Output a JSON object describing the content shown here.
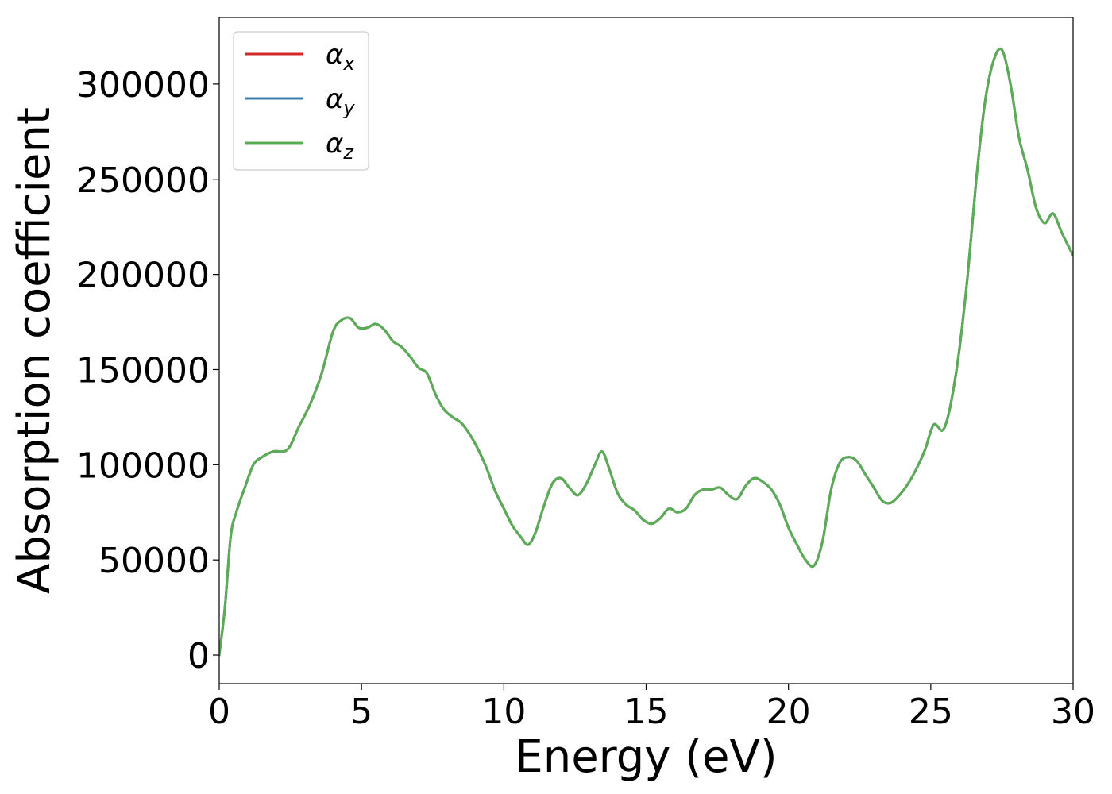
{
  "chart_data": {
    "type": "line",
    "xlabel": "Energy (eV)",
    "ylabel": "Absorption coefficient",
    "xlim": [
      0,
      30
    ],
    "ylim": [
      -15000,
      335000
    ],
    "xticks": [
      0,
      5,
      10,
      15,
      20,
      25,
      30
    ],
    "xtick_labels": [
      "0",
      "5",
      "10",
      "15",
      "20",
      "25",
      "30"
    ],
    "yticks": [
      0,
      50000,
      100000,
      150000,
      200000,
      250000,
      300000
    ],
    "ytick_labels": [
      "0",
      "50000",
      "100000",
      "150000",
      "200000",
      "250000",
      "300000"
    ],
    "grid": false,
    "legend_position": "top-left",
    "x": [
      0,
      0.2,
      0.4,
      0.6,
      0.9,
      1.2,
      1.5,
      1.9,
      2.4,
      2.8,
      3.2,
      3.6,
      4.0,
      4.3,
      4.6,
      4.9,
      5.2,
      5.5,
      5.8,
      6.1,
      6.4,
      6.7,
      7.0,
      7.3,
      7.6,
      7.9,
      8.2,
      8.5,
      8.8,
      9.1,
      9.4,
      9.7,
      10.0,
      10.3,
      10.6,
      10.85,
      11.1,
      11.4,
      11.7,
      12.0,
      12.3,
      12.6,
      12.9,
      13.2,
      13.45,
      13.7,
      14.0,
      14.3,
      14.6,
      14.9,
      15.2,
      15.5,
      15.8,
      16.1,
      16.4,
      16.7,
      17.0,
      17.3,
      17.6,
      17.9,
      18.2,
      18.5,
      18.8,
      19.1,
      19.4,
      19.7,
      20.0,
      20.3,
      20.6,
      20.9,
      21.2,
      21.5,
      21.8,
      22.1,
      22.4,
      22.7,
      23.0,
      23.3,
      23.6,
      23.9,
      24.2,
      24.5,
      24.8,
      25.1,
      25.4,
      25.6,
      25.8,
      26.0,
      26.3,
      26.6,
      26.9,
      27.2,
      27.5,
      27.8,
      28.1,
      28.4,
      28.7,
      29.0,
      29.3,
      29.6,
      30.0
    ],
    "series": [
      {
        "name": "α_x",
        "color": "#d62728",
        "values": [
          0,
          25000,
          62000,
          75000,
          88000,
          100000,
          104000,
          107000,
          108000,
          120000,
          132000,
          148000,
          170000,
          176000,
          177000,
          172000,
          172000,
          174000,
          171000,
          165000,
          162000,
          157000,
          151000,
          148000,
          137000,
          129000,
          125000,
          122000,
          116000,
          108000,
          98000,
          86000,
          77000,
          68000,
          62000,
          58000,
          64000,
          78000,
          90000,
          93000,
          88000,
          84000,
          90000,
          100000,
          107000,
          98000,
          85000,
          79000,
          76000,
          71000,
          69000,
          72000,
          77000,
          75000,
          77000,
          84000,
          87000,
          87000,
          88000,
          84000,
          82000,
          89000,
          93000,
          91000,
          87000,
          79000,
          67000,
          58000,
          50000,
          47000,
          60000,
          87000,
          101000,
          104000,
          102000,
          95000,
          88000,
          81000,
          80000,
          84000,
          90000,
          98000,
          108000,
          121000,
          118000,
          125000,
          140000,
          160000,
          200000,
          250000,
          290000,
          312000,
          318000,
          300000,
          272000,
          255000,
          235000,
          227000,
          232000,
          222000,
          210000
        ]
      },
      {
        "name": "α_y",
        "color": "#3b7fb0",
        "values": [
          0,
          25000,
          62000,
          75000,
          88000,
          100000,
          104000,
          107000,
          108000,
          120000,
          132000,
          148000,
          170000,
          176000,
          177000,
          172000,
          172000,
          174000,
          171000,
          165000,
          162000,
          157000,
          151000,
          148000,
          137000,
          129000,
          125000,
          122000,
          116000,
          108000,
          98000,
          86000,
          77000,
          68000,
          62000,
          58000,
          64000,
          78000,
          90000,
          93000,
          88000,
          84000,
          90000,
          100000,
          107000,
          98000,
          85000,
          79000,
          76000,
          71000,
          69000,
          72000,
          77000,
          75000,
          77000,
          84000,
          87000,
          87000,
          88000,
          84000,
          82000,
          89000,
          93000,
          91000,
          87000,
          79000,
          67000,
          58000,
          50000,
          47000,
          60000,
          87000,
          101000,
          104000,
          102000,
          95000,
          88000,
          81000,
          80000,
          84000,
          90000,
          98000,
          108000,
          121000,
          118000,
          125000,
          140000,
          160000,
          200000,
          250000,
          290000,
          312000,
          318000,
          300000,
          272000,
          255000,
          235000,
          227000,
          232000,
          222000,
          210000
        ]
      },
      {
        "name": "α_z",
        "color": "#5aad55",
        "values": [
          0,
          25000,
          62000,
          75000,
          88000,
          100000,
          104000,
          107000,
          108000,
          120000,
          132000,
          148000,
          170000,
          176000,
          177000,
          172000,
          172000,
          174000,
          171000,
          165000,
          162000,
          157000,
          151000,
          148000,
          137000,
          129000,
          125000,
          122000,
          116000,
          108000,
          98000,
          86000,
          77000,
          68000,
          62000,
          58000,
          64000,
          78000,
          90000,
          93000,
          88000,
          84000,
          90000,
          100000,
          107000,
          98000,
          85000,
          79000,
          76000,
          71000,
          69000,
          72000,
          77000,
          75000,
          77000,
          84000,
          87000,
          87000,
          88000,
          84000,
          82000,
          89000,
          93000,
          91000,
          87000,
          79000,
          67000,
          58000,
          50000,
          47000,
          60000,
          87000,
          101000,
          104000,
          102000,
          95000,
          88000,
          81000,
          80000,
          84000,
          90000,
          98000,
          108000,
          121000,
          118000,
          125000,
          140000,
          160000,
          200000,
          250000,
          290000,
          312000,
          318000,
          300000,
          272000,
          255000,
          235000,
          227000,
          232000,
          222000,
          210000
        ]
      }
    ],
    "legend": [
      {
        "symbol": "α",
        "subscript": "x"
      },
      {
        "symbol": "α",
        "subscript": "y"
      },
      {
        "symbol": "α",
        "subscript": "z"
      }
    ]
  }
}
